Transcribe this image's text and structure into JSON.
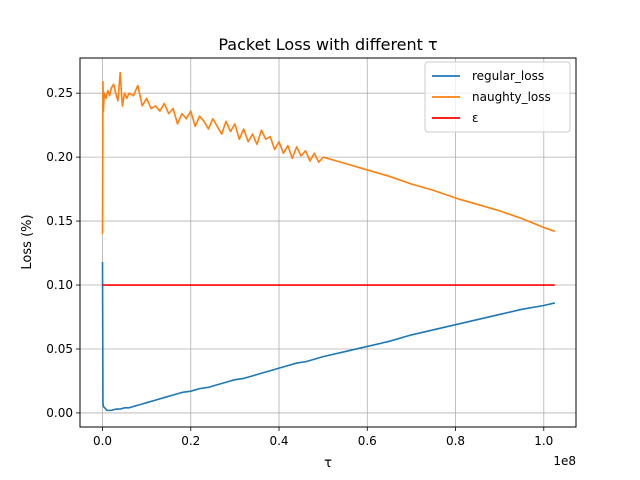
{
  "chart_data": {
    "type": "line",
    "title": "Packet Loss with different τ",
    "xlabel": "τ",
    "ylabel": "Loss (%)",
    "x_offset_label": "1e8",
    "xlim": [
      -5100000,
      107300000
    ],
    "ylim": [
      -0.011,
      0.2775
    ],
    "x_ticks": [
      0,
      20000000,
      40000000,
      60000000,
      80000000,
      100000000
    ],
    "x_tick_labels": [
      "0.0",
      "0.2",
      "0.4",
      "0.6",
      "0.8",
      "1.0"
    ],
    "y_ticks": [
      0.0,
      0.05,
      0.1,
      0.15,
      0.2,
      0.25
    ],
    "y_tick_labels": [
      "0.00",
      "0.05",
      "0.10",
      "0.15",
      "0.20",
      "0.25"
    ],
    "grid": true,
    "legend_position": "top-right",
    "series": [
      {
        "name": "regular_loss",
        "color": "#1f77b4",
        "x": [
          0,
          100000,
          200000,
          500000,
          1000000,
          2000000,
          3000000,
          4000000,
          5000000,
          6000000,
          7000000,
          8000000,
          9000000,
          10000000,
          12000000,
          14000000,
          16000000,
          18000000,
          20000000,
          22000000,
          24000000,
          26000000,
          28000000,
          30000000,
          32000000,
          34000000,
          36000000,
          38000000,
          40000000,
          42000000,
          44000000,
          46000000,
          48000000,
          50000000,
          55000000,
          60000000,
          65000000,
          70000000,
          75000000,
          80000000,
          85000000,
          90000000,
          95000000,
          100000000,
          102500000
        ],
        "y": [
          0.118,
          0.008,
          0.005,
          0.004,
          0.002,
          0.002,
          0.003,
          0.003,
          0.004,
          0.004,
          0.005,
          0.006,
          0.007,
          0.008,
          0.01,
          0.012,
          0.014,
          0.016,
          0.017,
          0.019,
          0.02,
          0.022,
          0.024,
          0.026,
          0.027,
          0.029,
          0.031,
          0.033,
          0.035,
          0.037,
          0.039,
          0.04,
          0.042,
          0.044,
          0.048,
          0.052,
          0.056,
          0.061,
          0.065,
          0.069,
          0.073,
          0.077,
          0.081,
          0.084,
          0.086
        ]
      },
      {
        "name": "naughty_loss",
        "color": "#ff7f0e",
        "x": [
          0,
          100000,
          200000,
          400000,
          600000,
          800000,
          1200000,
          1600000,
          2000000,
          2500000,
          3000000,
          3500000,
          4000000,
          4500000,
          5000000,
          5500000,
          6000000,
          7000000,
          8000000,
          9000000,
          10000000,
          11000000,
          12000000,
          13000000,
          14000000,
          15000000,
          16000000,
          17000000,
          18000000,
          19000000,
          20000000,
          21000000,
          22000000,
          23000000,
          24000000,
          25000000,
          26000000,
          27000000,
          28000000,
          29000000,
          30000000,
          31000000,
          32000000,
          33000000,
          34000000,
          35000000,
          36000000,
          37000000,
          38000000,
          39000000,
          40000000,
          41000000,
          42000000,
          43000000,
          44000000,
          45000000,
          46000000,
          47000000,
          48000000,
          49000000,
          50000000,
          55000000,
          60000000,
          65000000,
          70000000,
          75000000,
          80000000,
          85000000,
          90000000,
          95000000,
          100000000,
          102500000
        ],
        "y": [
          0.14,
          0.259,
          0.236,
          0.25,
          0.248,
          0.246,
          0.252,
          0.248,
          0.254,
          0.257,
          0.25,
          0.244,
          0.266,
          0.24,
          0.25,
          0.246,
          0.25,
          0.248,
          0.256,
          0.24,
          0.246,
          0.238,
          0.24,
          0.236,
          0.242,
          0.234,
          0.238,
          0.226,
          0.234,
          0.23,
          0.236,
          0.224,
          0.232,
          0.228,
          0.222,
          0.23,
          0.224,
          0.218,
          0.228,
          0.22,
          0.226,
          0.214,
          0.222,
          0.212,
          0.218,
          0.21,
          0.221,
          0.214,
          0.216,
          0.206,
          0.212,
          0.203,
          0.209,
          0.199,
          0.208,
          0.201,
          0.205,
          0.197,
          0.203,
          0.196,
          0.2,
          0.195,
          0.19,
          0.185,
          0.179,
          0.174,
          0.168,
          0.163,
          0.158,
          0.152,
          0.145,
          0.142
        ]
      },
      {
        "name": "ε",
        "color": "#ff0000",
        "x": [
          0,
          102500000
        ],
        "y": [
          0.1,
          0.1
        ]
      }
    ]
  }
}
